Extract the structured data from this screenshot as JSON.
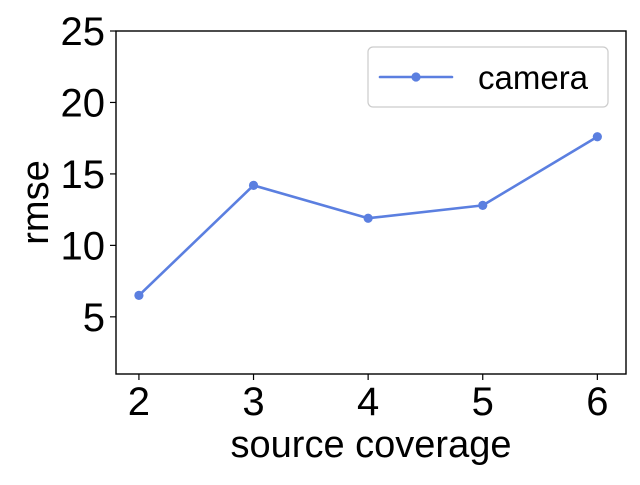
{
  "chart_data": {
    "type": "line",
    "title": "",
    "xlabel": "source coverage",
    "ylabel": "rmse",
    "x": [
      2,
      3,
      4,
      5,
      6
    ],
    "series": [
      {
        "name": "camera",
        "values": [
          6.5,
          14.2,
          11.9,
          12.8,
          17.6
        ],
        "color": "#5b7fe0",
        "marker": "circle"
      }
    ],
    "xlim": [
      1.8,
      6.25
    ],
    "ylim": [
      1.0,
      25.0
    ],
    "xticks": [
      2,
      3,
      4,
      5,
      6
    ],
    "yticks": [
      5,
      10,
      15,
      20,
      25
    ],
    "grid": false,
    "legend_position": "top-right"
  }
}
